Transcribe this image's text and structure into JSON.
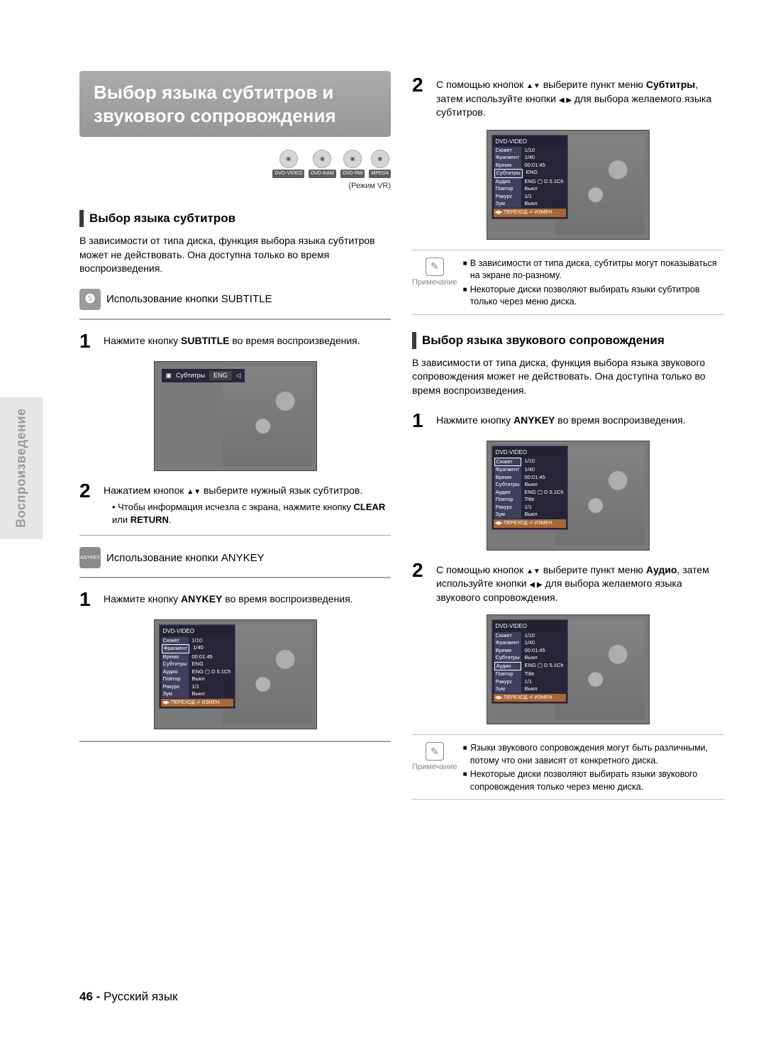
{
  "sideTab": "Воспроизведение",
  "title": "Выбор языка субтитров и звукового сопровождения",
  "discs": [
    "DVD-VIDEO",
    "DVD-RAM",
    "DVD-RW",
    "MPEG4"
  ],
  "modeNote": "(Режим VR)",
  "left": {
    "sectA_header": "Выбор языка субтитров",
    "sectA_para": "В зависимости от типа диска, функция выбора языка субтитров может не действовать. Она доступна только во время воспроизведения.",
    "sub1_title": "Использование кнопки SUBTITLE",
    "sub1_step1": "Нажмите кнопку <b>SUBTITLE</b> во время воспроизведения.",
    "sub1_step2": "Нажатием кнопок <span class='arrow'>▲▼</span> выберите нужный язык субтитров.",
    "sub1_bullet": "Чтобы информация исчезла с экрана, нажмите кнопку <b>CLEAR</b> или <b>RETURN</b>.",
    "sub2_title": "Использование кнопки ANYKEY",
    "sub2_step1": "Нажмите кнопку <b>ANYKEY</b> во время воспроизведения."
  },
  "right": {
    "top_step2": "С помощью кнопок <span class='arrow'>▲▼</span> выберите пункт меню <b>Субтитры</b>, затем используйте кнопки <span class='arrow'>◀ ▶</span> для выбора желаемого языка субтитров.",
    "note1_items": [
      "В зависимости от типа диска, субтитры могут показываться на экране по-разному.",
      "Некоторые диски позволяют выбирать языки субтитров только через меню диска."
    ],
    "note_label": "Примечание",
    "sectB_header": "Выбор языка звукового сопровождения",
    "sectB_para": "В зависимости от типа диска, функция выбора языка звукового сопровождения может не действовать. Она доступна только во время воспроизведения.",
    "sectB_step1": "Нажмите кнопку <b>ANYKEY</b> во время воспроизведения.",
    "sectB_step2": "С помощью кнопок <span class='arrow'>▲▼</span> выберите пункт меню <b>Аудио</b>, затем используйте кнопки <span class='arrow'>◀ ▶</span> для выбора желаемого языка звукового сопровождения.",
    "note2_items": [
      "Языки звукового сопровождения могут быть различными, потому что они зависят от конкретного диска.",
      "Некоторые диски позволяют выбирать языки звукового сопровождения только через меню диска."
    ]
  },
  "osd": {
    "header": "DVD-VIDEO",
    "rows": [
      {
        "k": "Сюжет",
        "v": "1/10"
      },
      {
        "k": "Фрагмент",
        "v": "1/40"
      },
      {
        "k": "Время",
        "v": "00:01:45"
      },
      {
        "k": "Субтитры",
        "v": "ENG"
      },
      {
        "k": "Аудио",
        "v": "ENG ▢ D 5.1Ch"
      },
      {
        "k": "Повтор",
        "v": "Выкл"
      },
      {
        "k": "Ракурс",
        "v": "1/1"
      },
      {
        "k": "Зум",
        "v": "Выкл"
      }
    ],
    "rows_b": [
      {
        "k": "Сюжет",
        "v": "1/10"
      },
      {
        "k": "Фрагмент",
        "v": "1/40"
      },
      {
        "k": "Время",
        "v": "00:01:45"
      },
      {
        "k": "Субтитры",
        "v": "Выкл"
      },
      {
        "k": "Аудио",
        "v": "ENG ▢ D 5.1Ch"
      },
      {
        "k": "Повтор",
        "v": "Title"
      },
      {
        "k": "Ракурс",
        "v": "1/1"
      },
      {
        "k": "Зум",
        "v": "Выкл"
      }
    ],
    "footer": "◀▶ ПЕРЕХОД ⏎ ИЗМЕН.",
    "strip_label": "Субтитры",
    "strip_value": "ENG"
  },
  "footer_page": "46 -",
  "footer_lang": "Русский язык"
}
